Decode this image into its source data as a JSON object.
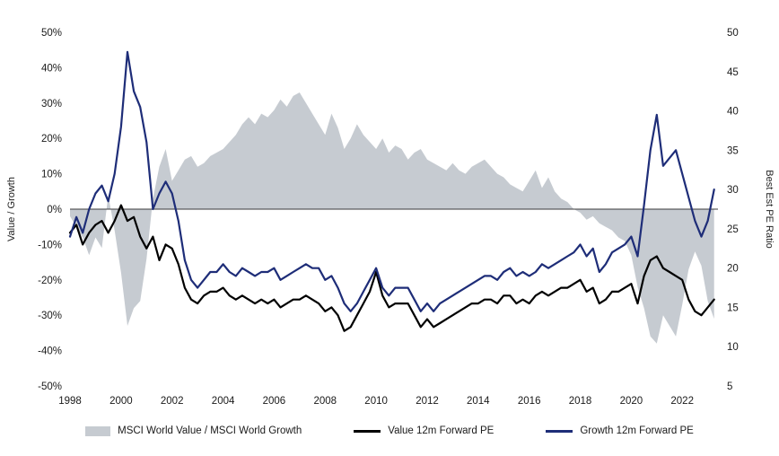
{
  "page": {
    "background": "#ffffff"
  },
  "chart_data": {
    "type": "line",
    "title": "",
    "grid": false,
    "legend_position": "bottom",
    "colors": {
      "area": "#c6cbd1",
      "value_line": "#000000",
      "growth_line": "#1e2d78",
      "zero_line": "#3a3a3a"
    },
    "left_axis": {
      "label": "Value / Growth",
      "min": -50,
      "max": 50,
      "tick_step": 10,
      "ticks": [
        {
          "value": 50,
          "label": "50%"
        },
        {
          "value": 40,
          "label": "40%"
        },
        {
          "value": 30,
          "label": "30%"
        },
        {
          "value": 20,
          "label": "20%"
        },
        {
          "value": 10,
          "label": "10%"
        },
        {
          "value": 0,
          "label": "0%"
        },
        {
          "value": -10,
          "label": "-10%"
        },
        {
          "value": -20,
          "label": "-20%"
        },
        {
          "value": -30,
          "label": "-30%"
        },
        {
          "value": -40,
          "label": "-40%"
        },
        {
          "value": -50,
          "label": "-50%"
        }
      ]
    },
    "right_axis": {
      "label": "Best Est PE Ratio",
      "min": 5,
      "max": 50,
      "tick_step": 5,
      "ticks": [
        {
          "value": 50,
          "label": "50"
        },
        {
          "value": 45,
          "label": "45"
        },
        {
          "value": 40,
          "label": "40"
        },
        {
          "value": 35,
          "label": "35"
        },
        {
          "value": 30,
          "label": "30"
        },
        {
          "value": 25,
          "label": "25"
        },
        {
          "value": 20,
          "label": "20"
        },
        {
          "value": 15,
          "label": "15"
        },
        {
          "value": 10,
          "label": "10"
        },
        {
          "value": 5,
          "label": "5"
        }
      ]
    },
    "x_axis": {
      "range": [
        1998,
        2023.4
      ],
      "ticks": [
        {
          "value": 1998,
          "label": "1998"
        },
        {
          "value": 2000,
          "label": "2000"
        },
        {
          "value": 2002,
          "label": "2002"
        },
        {
          "value": 2004,
          "label": "2004"
        },
        {
          "value": 2006,
          "label": "2006"
        },
        {
          "value": 2008,
          "label": "2008"
        },
        {
          "value": 2010,
          "label": "2010"
        },
        {
          "value": 2012,
          "label": "2012"
        },
        {
          "value": 2014,
          "label": "2014"
        },
        {
          "value": 2016,
          "label": "2016"
        },
        {
          "value": 2018,
          "label": "2018"
        },
        {
          "value": 2020,
          "label": "2020"
        },
        {
          "value": 2022,
          "label": "2022"
        }
      ]
    },
    "x": [
      1998,
      1998.25,
      1998.5,
      1998.75,
      1999,
      1999.25,
      1999.5,
      1999.75,
      2000,
      2000.25,
      2000.5,
      2000.75,
      2001,
      2001.25,
      2001.5,
      2001.75,
      2002,
      2002.25,
      2002.5,
      2002.75,
      2003,
      2003.25,
      2003.5,
      2003.75,
      2004,
      2004.25,
      2004.5,
      2004.75,
      2005,
      2005.25,
      2005.5,
      2005.75,
      2006,
      2006.25,
      2006.5,
      2006.75,
      2007,
      2007.25,
      2007.5,
      2007.75,
      2008,
      2008.25,
      2008.5,
      2008.75,
      2009,
      2009.25,
      2009.5,
      2009.75,
      2010,
      2010.25,
      2010.5,
      2010.75,
      2011,
      2011.25,
      2011.5,
      2011.75,
      2012,
      2012.25,
      2012.5,
      2012.75,
      2013,
      2013.25,
      2013.5,
      2013.75,
      2014,
      2014.25,
      2014.5,
      2014.75,
      2015,
      2015.25,
      2015.5,
      2015.75,
      2016,
      2016.25,
      2016.5,
      2016.75,
      2017,
      2017.25,
      2017.5,
      2017.75,
      2018,
      2018.25,
      2018.5,
      2018.75,
      2019,
      2019.25,
      2019.5,
      2019.75,
      2020,
      2020.25,
      2020.5,
      2020.75,
      2021,
      2021.25,
      2021.5,
      2021.75,
      2022,
      2022.25,
      2022.5,
      2022.75,
      2023,
      2023.25
    ],
    "series": [
      {
        "name": "MSCI World Value / MSCI World Growth",
        "type": "area",
        "axis": "left",
        "baseline": 0,
        "color": "#c6cbd1",
        "values": [
          -2,
          -5,
          -8,
          -13,
          -8,
          -11,
          4,
          -6,
          -18,
          -33,
          -28,
          -26,
          -14,
          3,
          12,
          17,
          8,
          11,
          14,
          15,
          12,
          13,
          15,
          16,
          17,
          19,
          21,
          24,
          26,
          24,
          27,
          26,
          28,
          31,
          29,
          32,
          33,
          30,
          27,
          24,
          21,
          27,
          23,
          17,
          20,
          24,
          21,
          19,
          17,
          20,
          16,
          18,
          17,
          14,
          16,
          17,
          14,
          13,
          12,
          11,
          13,
          11,
          10,
          12,
          13,
          14,
          12,
          10,
          9,
          7,
          6,
          5,
          8,
          11,
          6,
          9,
          5,
          3,
          2,
          0,
          -1,
          -3,
          -2,
          -4,
          -5,
          -6,
          -8,
          -9,
          -13,
          -22,
          -28,
          -36,
          -38,
          -30,
          -33,
          -36,
          -27,
          -17,
          -12,
          -16,
          -26,
          -31
        ]
      },
      {
        "name": "Value 12m Forward PE",
        "type": "line",
        "axis": "right",
        "color": "#000000",
        "values": [
          24.5,
          25.5,
          23,
          24.5,
          25.5,
          26,
          24.5,
          26,
          28,
          26,
          26.5,
          24,
          22.5,
          24,
          21,
          23,
          22.5,
          20.5,
          17.5,
          16,
          15.5,
          16.5,
          17,
          17,
          17.5,
          16.5,
          16,
          16.5,
          16,
          15.5,
          16,
          15.5,
          16,
          15,
          15.5,
          16,
          16,
          16.5,
          16,
          15.5,
          14.5,
          15,
          14,
          12,
          12.5,
          14,
          15.5,
          17,
          19.5,
          16.5,
          15,
          15.5,
          15.5,
          15.5,
          14,
          12.5,
          13.5,
          12.5,
          13,
          13.5,
          14,
          14.5,
          15,
          15.5,
          15.5,
          16,
          16,
          15.5,
          16.5,
          16.5,
          15.5,
          16,
          15.5,
          16.5,
          17,
          16.5,
          17,
          17.5,
          17.5,
          18,
          18.5,
          17,
          17.5,
          15.5,
          16,
          17,
          17,
          17.5,
          18,
          15.5,
          19,
          21,
          21.5,
          20,
          19.5,
          19,
          18.5,
          16,
          14.5,
          14,
          15,
          16
        ]
      },
      {
        "name": "Growth 12m Forward PE",
        "type": "line",
        "axis": "right",
        "color": "#1e2d78",
        "values": [
          24,
          26.5,
          24.5,
          27.5,
          29.5,
          30.5,
          28.5,
          32,
          38,
          47.5,
          42.5,
          40.5,
          36,
          27.5,
          29.5,
          31,
          29.5,
          26,
          21,
          18.5,
          17.5,
          18.5,
          19.5,
          19.5,
          20.5,
          19.5,
          19,
          20,
          19.5,
          19,
          19.5,
          19.5,
          20,
          18.5,
          19,
          19.5,
          20,
          20.5,
          20,
          20,
          18.5,
          19,
          17.5,
          15.5,
          14.5,
          15.5,
          17,
          18.5,
          20,
          17.5,
          16.5,
          17.5,
          17.5,
          17.5,
          16,
          14.5,
          15.5,
          14.5,
          15.5,
          16,
          16.5,
          17,
          17.5,
          18,
          18.5,
          19,
          19,
          18.5,
          19.5,
          20,
          19,
          19.5,
          19,
          19.5,
          20.5,
          20,
          20.5,
          21,
          21.5,
          22,
          23,
          21.5,
          22.5,
          19.5,
          20.5,
          22,
          22.5,
          23,
          24,
          21.5,
          28,
          35,
          39.5,
          33,
          34,
          35,
          32,
          29,
          26,
          24,
          26,
          30
        ]
      }
    ]
  },
  "legend": {
    "items": [
      {
        "label": "MSCI World Value / MSCI World Growth",
        "swatch": "area",
        "color": "#c6cbd1"
      },
      {
        "label": "Value 12m Forward PE",
        "swatch": "line",
        "color": "#000000"
      },
      {
        "label": "Growth 12m Forward PE",
        "swatch": "line",
        "color": "#1e2d78"
      }
    ]
  }
}
